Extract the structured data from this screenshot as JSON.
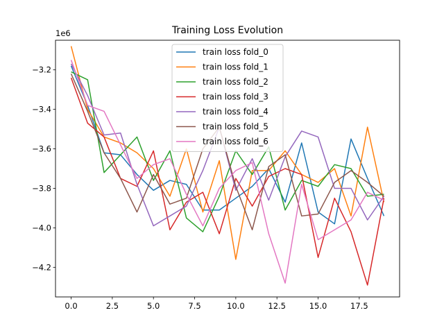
{
  "chart_data": {
    "type": "line",
    "title": "Training Loss Evolution",
    "xlabel": "",
    "ylabel": "",
    "y_offset_label": "1e6",
    "xlim": [
      -0.95,
      19.95
    ],
    "ylim": [
      -4.35,
      -3.05
    ],
    "x_ticks": [
      0,
      2.5,
      5,
      7.5,
      10,
      12.5,
      15,
      17.5
    ],
    "x_tick_labels": [
      "0.0",
      "2.5",
      "5.0",
      "7.5",
      "10.0",
      "12.5",
      "15.0",
      "17.5"
    ],
    "y_ticks": [
      -3.2,
      -3.4,
      -3.6,
      -3.8,
      -4.0,
      -4.2
    ],
    "y_tick_labels": [
      "−3.2",
      "−3.4",
      "−3.6",
      "−3.8",
      "−4.0",
      "−4.2"
    ],
    "grid": false,
    "legend_position": "upper-center",
    "x": [
      0,
      1,
      2,
      3,
      4,
      5,
      6,
      7,
      8,
      9,
      10,
      11,
      12,
      13,
      14,
      15,
      16,
      17,
      18,
      19
    ],
    "series": [
      {
        "name": "train loss fold_0",
        "color": "#1f77b4",
        "values": [
          -3.18,
          -3.38,
          -3.62,
          -3.63,
          -3.73,
          -3.81,
          -3.76,
          -3.78,
          -3.91,
          -3.91,
          -3.85,
          -3.79,
          -3.7,
          -3.87,
          -3.57,
          -3.92,
          -3.98,
          -3.55,
          -3.75,
          -3.94
        ]
      },
      {
        "name": "train loss fold_1",
        "color": "#ff7f0e",
        "values": [
          -3.08,
          -3.4,
          -3.54,
          -3.57,
          -3.62,
          -3.7,
          -3.84,
          -3.6,
          -3.92,
          -3.66,
          -4.16,
          -3.71,
          -3.71,
          -3.61,
          -3.73,
          -3.77,
          -3.7,
          -3.94,
          -3.49,
          -3.87
        ]
      },
      {
        "name": "train loss fold_2",
        "color": "#2ca02c",
        "values": [
          -3.21,
          -3.25,
          -3.72,
          -3.63,
          -3.54,
          -3.76,
          -3.61,
          -3.95,
          -4.02,
          -3.84,
          -3.61,
          -3.73,
          -3.59,
          -3.91,
          -3.76,
          -3.79,
          -3.68,
          -3.7,
          -3.84,
          -3.83
        ]
      },
      {
        "name": "train loss fold_3",
        "color": "#d62728",
        "values": [
          -3.24,
          -3.47,
          -3.54,
          -3.75,
          -3.79,
          -3.61,
          -4.01,
          -3.87,
          -3.82,
          -4.03,
          -3.75,
          -3.89,
          -3.74,
          -3.7,
          -3.73,
          -4.15,
          -3.85,
          -4.02,
          -4.29,
          -3.85
        ]
      },
      {
        "name": "train loss fold_4",
        "color": "#9467bd",
        "values": [
          -3.17,
          -3.33,
          -3.53,
          -3.52,
          -3.78,
          -3.99,
          -3.94,
          -3.89,
          -3.71,
          -3.49,
          -3.81,
          -3.65,
          -3.86,
          -3.64,
          -3.51,
          -3.54,
          -3.8,
          -3.8,
          -3.96,
          -3.84
        ]
      },
      {
        "name": "train loss fold_5",
        "color": "#8c564b",
        "values": [
          -3.22,
          -3.41,
          -3.62,
          -3.75,
          -3.92,
          -3.73,
          -3.88,
          -3.85,
          -3.6,
          -3.49,
          -3.79,
          -4.01,
          -3.69,
          -3.63,
          -3.94,
          -3.93,
          -3.77,
          -3.71,
          -3.77,
          -3.84
        ]
      },
      {
        "name": "train loss fold_6",
        "color": "#e377c2",
        "values": [
          -3.15,
          -3.38,
          -3.41,
          -3.58,
          -3.75,
          -3.68,
          -3.65,
          -3.83,
          -3.99,
          -3.8,
          -3.71,
          -3.67,
          -4.03,
          -4.28,
          -3.78,
          -4.06,
          -4.01,
          -3.96,
          -3.82,
          -3.86
        ]
      }
    ]
  }
}
